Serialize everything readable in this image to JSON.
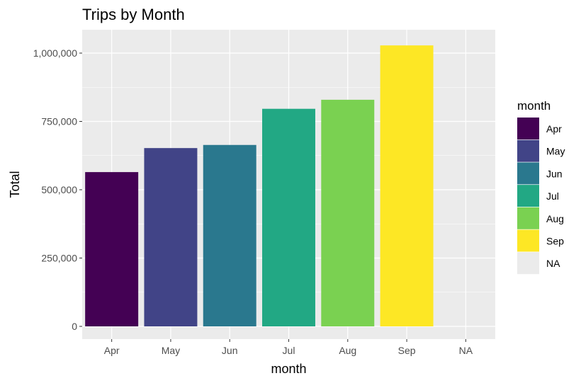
{
  "chart_data": {
    "type": "bar",
    "title": "Trips by Month",
    "xlabel": "month",
    "ylabel": "Total",
    "categories": [
      "Apr",
      "May",
      "Jun",
      "Jul",
      "Aug",
      "Sep",
      "NA"
    ],
    "values": [
      564516,
      652435,
      663844,
      796121,
      829275,
      1028136,
      null
    ],
    "ylim": [
      0,
      1070000
    ],
    "yticks": [
      0,
      250000,
      500000,
      750000,
      1000000
    ],
    "ytick_labels": [
      "0",
      "250,000",
      "500,000",
      "750,000",
      "1,000,000"
    ],
    "grid": true,
    "legend": {
      "title": "month",
      "placement": "right",
      "entries": [
        "Apr",
        "May",
        "Jun",
        "Jul",
        "Aug",
        "Sep",
        "NA"
      ]
    },
    "colors": [
      "#440154",
      "#414487",
      "#2A788E",
      "#22A884",
      "#7AD151",
      "#FDE725",
      "#EBEBEB"
    ],
    "panel_background": "#EBEBEB"
  }
}
